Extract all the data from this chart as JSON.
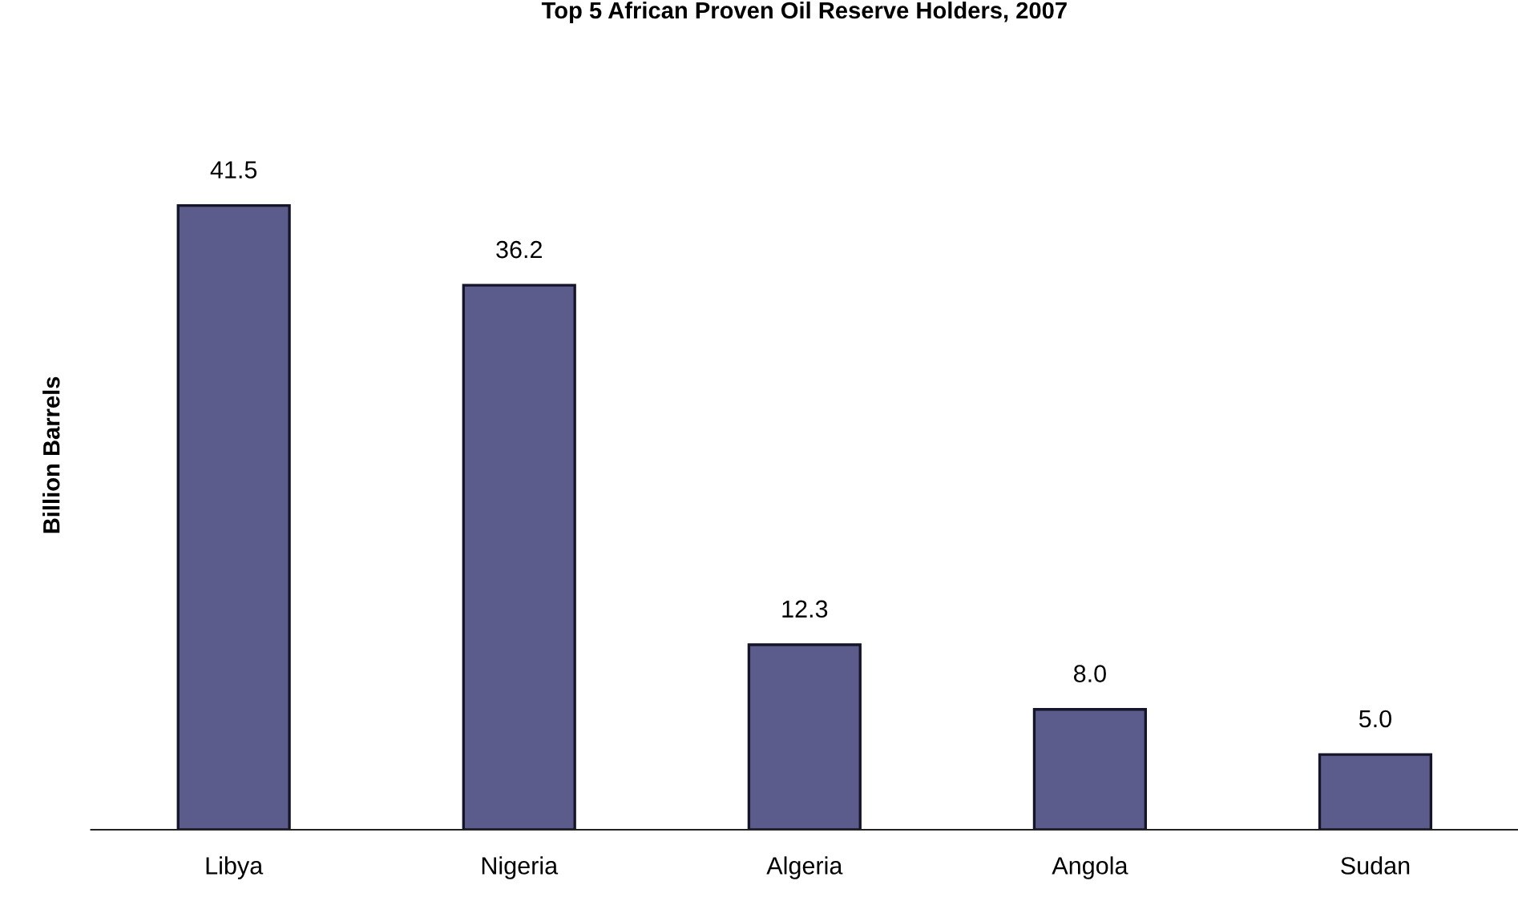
{
  "chart_data": {
    "type": "bar",
    "title": "Top 5 African Proven Oil Reserve Holders, 2007",
    "ylabel": "Billion Barrels",
    "categories": [
      "Libya",
      "Nigeria",
      "Algeria",
      "Angola",
      "Sudan"
    ],
    "values": [
      41.5,
      36.2,
      12.3,
      8.0,
      5.0
    ],
    "value_labels": [
      "41.5",
      "36.2",
      "12.3",
      "8.0",
      "5.0"
    ],
    "color": "#5c5c8c",
    "grid": false,
    "legend": false
  }
}
